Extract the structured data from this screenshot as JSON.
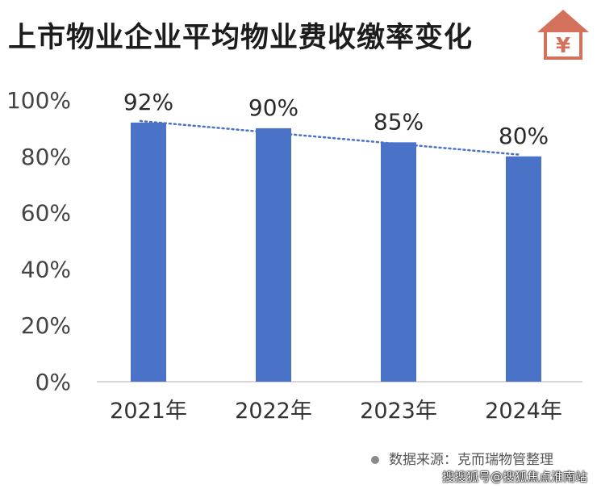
{
  "title": "上市物业企业平均物业费收缴率变化",
  "badge": {
    "symbol": "¥",
    "color": "#d4715a"
  },
  "chart_data": {
    "type": "bar",
    "categories": [
      "2021年",
      "2022年",
      "2023年",
      "2024年"
    ],
    "values": [
      92,
      90,
      85,
      80
    ],
    "value_labels": [
      "92%",
      "90%",
      "85%",
      "80%"
    ],
    "y_ticks": [
      "0%",
      "20%",
      "40%",
      "60%",
      "80%",
      "100%"
    ],
    "ylim": [
      0,
      100
    ],
    "grid": false,
    "trendline": true,
    "bar_color": "#4a73c8",
    "trend_color": "#4a73c8"
  },
  "source": "数据来源：克而瑞物管整理",
  "credit": "搜搜狐号@搜狐焦点淮南站"
}
